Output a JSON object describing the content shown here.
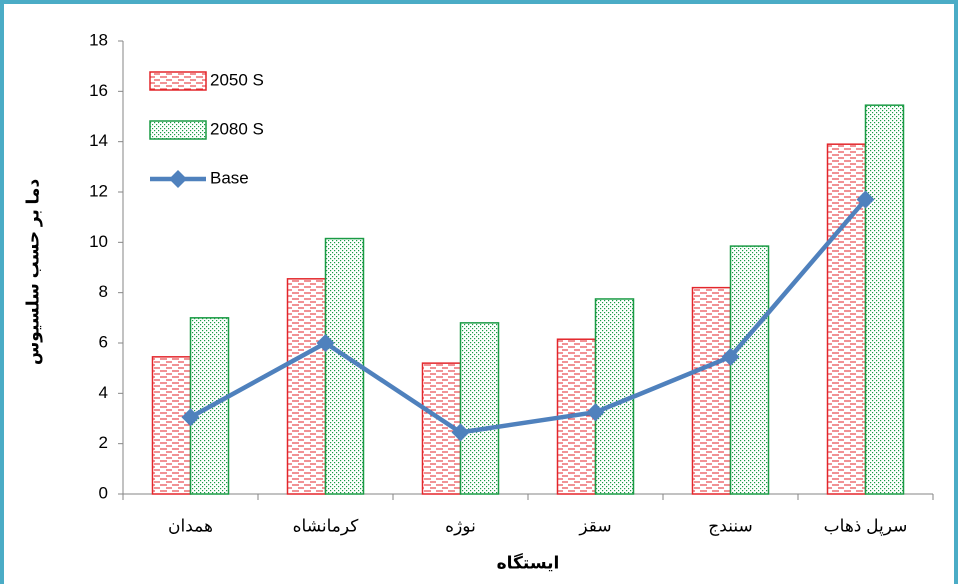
{
  "chart_data": {
    "type": "bar",
    "y_label": "دما بر حسب سلسیوس",
    "x_label": "ایستگاه",
    "categories": [
      "همدان",
      "کرمانشاه",
      "نوژه",
      "سقز",
      "سنندج",
      "سرپل ذهاب"
    ],
    "series": [
      {
        "name": "2050 S",
        "type": "bar",
        "pattern": "dashes",
        "color": "#e3262b",
        "values": [
          5.45,
          8.55,
          5.2,
          6.15,
          8.2,
          13.9
        ]
      },
      {
        "name": "2080 S",
        "type": "bar",
        "pattern": "dots",
        "color": "#1a9b45",
        "values": [
          7.0,
          10.15,
          6.8,
          7.75,
          9.85,
          15.45
        ]
      },
      {
        "name": "Base",
        "type": "line",
        "color": "#4f81bd",
        "values": [
          3.05,
          6.0,
          2.45,
          3.25,
          5.45,
          11.7
        ]
      }
    ],
    "ylim": [
      0,
      18
    ],
    "yticks": [
      0,
      2,
      4,
      6,
      8,
      10,
      12,
      14,
      16,
      18
    ],
    "legend": "top-left"
  }
}
